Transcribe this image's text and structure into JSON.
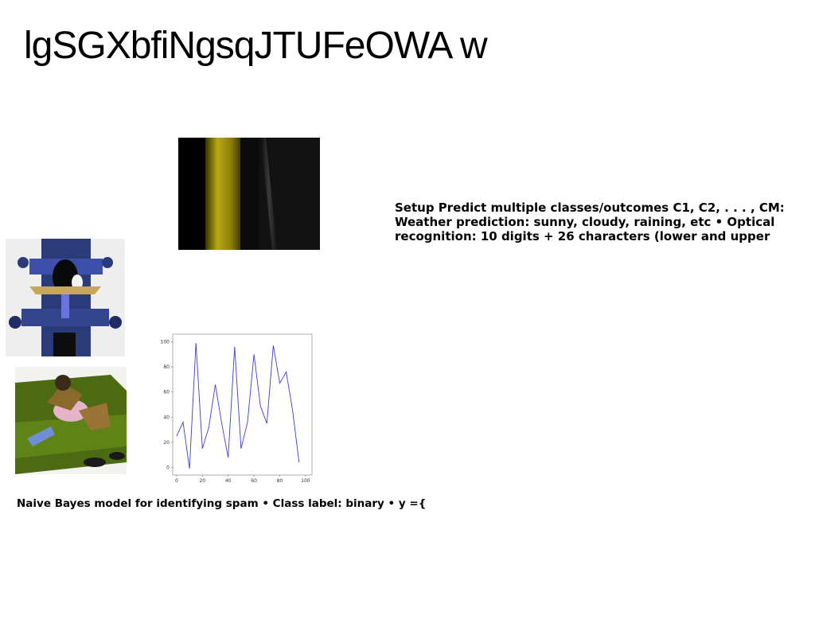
{
  "slide": {
    "title": "lgSGXbfiNgsqJTUFeOWA w",
    "setup_text": "Setup Predict multiple classes/outcomes C1, C2, . . . , CM: Weather prediction: sunny, cloudy, raining, etc • Optical recognition: 10 digits + 26 characters (lower and upper",
    "caption": "Naive Bayes model for identifying spam • Class label: binary • y ={"
  },
  "images": {
    "stripe": "dark-yellow-stripe-photo",
    "tower": "ornate-blue-tower-illustration",
    "sofa": "person-on-green-sofa-illustration"
  },
  "chart_data": {
    "type": "line",
    "x": [
      0,
      5,
      10,
      15,
      20,
      25,
      30,
      35,
      40,
      45,
      50,
      55,
      60,
      65,
      70,
      75,
      80,
      85,
      90,
      95,
      100
    ],
    "series": [
      {
        "values": [
          25,
          36,
          -1,
          99,
          15,
          32,
          66,
          35,
          8,
          96,
          15,
          36,
          90,
          49,
          35,
          97,
          67,
          76,
          45,
          4,
          null
        ]
      }
    ],
    "x_ticks": [
      0,
      20,
      40,
      60,
      80,
      100
    ],
    "y_ticks": [
      0,
      20,
      40,
      60,
      80,
      100
    ],
    "xlim": [
      -3,
      105
    ],
    "ylim": [
      -6,
      106
    ],
    "line_color": "#3b3bdc",
    "grid": false
  }
}
